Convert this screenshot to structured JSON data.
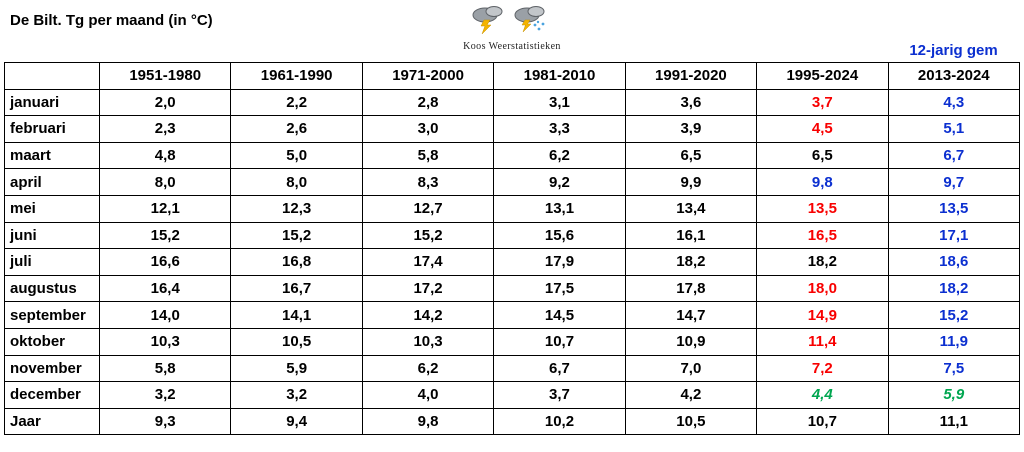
{
  "colors": {
    "red": "#f80000",
    "blue": "#0b2fd0",
    "green": "#00a650"
  },
  "header": {
    "title": "De Bilt. Tg per maand (in °C)",
    "brand": "Koos Weerstatistieken",
    "right_label": "12-jarig gem"
  },
  "chart_data": {
    "type": "table",
    "title": "De Bilt. Tg per maand (in °C)",
    "columns": [
      "",
      "1951-1980",
      "1961-1990",
      "1971-2000",
      "1981-2010",
      "1991-2020",
      "1995-2024",
      "2013-2024"
    ],
    "rows": [
      {
        "label": "januari",
        "values": [
          "2,0",
          "2,2",
          "2,8",
          "3,1",
          "3,6",
          "3,7",
          "4,3"
        ],
        "colors": [
          "k",
          "k",
          "k",
          "k",
          "k",
          "r",
          "b"
        ]
      },
      {
        "label": "februari",
        "values": [
          "2,3",
          "2,6",
          "3,0",
          "3,3",
          "3,9",
          "4,5",
          "5,1"
        ],
        "colors": [
          "k",
          "k",
          "k",
          "k",
          "k",
          "r",
          "b"
        ]
      },
      {
        "label": "maart",
        "values": [
          "4,8",
          "5,0",
          "5,8",
          "6,2",
          "6,5",
          "6,5",
          "6,7"
        ],
        "colors": [
          "k",
          "k",
          "k",
          "k",
          "k",
          "k",
          "b"
        ]
      },
      {
        "label": "april",
        "values": [
          "8,0",
          "8,0",
          "8,3",
          "9,2",
          "9,9",
          "9,8",
          "9,7"
        ],
        "colors": [
          "k",
          "k",
          "k",
          "k",
          "k",
          "b",
          "b"
        ]
      },
      {
        "label": "mei",
        "values": [
          "12,1",
          "12,3",
          "12,7",
          "13,1",
          "13,4",
          "13,5",
          "13,5"
        ],
        "colors": [
          "k",
          "k",
          "k",
          "k",
          "k",
          "r",
          "b"
        ]
      },
      {
        "label": "juni",
        "values": [
          "15,2",
          "15,2",
          "15,2",
          "15,6",
          "16,1",
          "16,5",
          "17,1"
        ],
        "colors": [
          "k",
          "k",
          "k",
          "k",
          "k",
          "r",
          "b"
        ]
      },
      {
        "label": "juli",
        "values": [
          "16,6",
          "16,8",
          "17,4",
          "17,9",
          "18,2",
          "18,2",
          "18,6"
        ],
        "colors": [
          "k",
          "k",
          "k",
          "k",
          "k",
          "k",
          "b"
        ]
      },
      {
        "label": "augustus",
        "values": [
          "16,4",
          "16,7",
          "17,2",
          "17,5",
          "17,8",
          "18,0",
          "18,2"
        ],
        "colors": [
          "k",
          "k",
          "k",
          "k",
          "k",
          "r",
          "b"
        ]
      },
      {
        "label": "september",
        "values": [
          "14,0",
          "14,1",
          "14,2",
          "14,5",
          "14,7",
          "14,9",
          "15,2"
        ],
        "colors": [
          "k",
          "k",
          "k",
          "k",
          "k",
          "r",
          "b"
        ]
      },
      {
        "label": "oktober",
        "values": [
          "10,3",
          "10,5",
          "10,3",
          "10,7",
          "10,9",
          "11,4",
          "11,9"
        ],
        "colors": [
          "k",
          "k",
          "k",
          "k",
          "k",
          "r",
          "b"
        ]
      },
      {
        "label": "november",
        "values": [
          "5,8",
          "5,9",
          "6,2",
          "6,7",
          "7,0",
          "7,2",
          "7,5"
        ],
        "colors": [
          "k",
          "k",
          "k",
          "k",
          "k",
          "r",
          "b"
        ]
      },
      {
        "label": "december",
        "values": [
          "3,2",
          "3,2",
          "4,0",
          "3,7",
          "4,2",
          "4,4",
          "5,9"
        ],
        "colors": [
          "k",
          "k",
          "k",
          "k",
          "k",
          "g",
          "g"
        ]
      },
      {
        "label": "Jaar",
        "values": [
          "9,3",
          "9,4",
          "9,8",
          "10,2",
          "10,5",
          "10,7",
          "11,1"
        ],
        "colors": [
          "k",
          "k",
          "k",
          "k",
          "k",
          "k",
          "k"
        ]
      }
    ]
  }
}
